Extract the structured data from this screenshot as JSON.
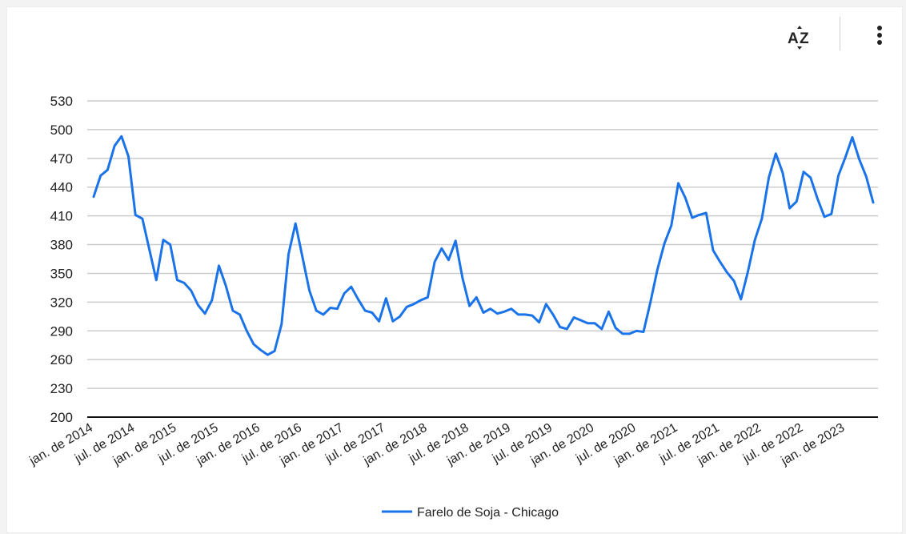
{
  "toolbar": {
    "sort_icon": "az-sort-icon",
    "menu_icon": "more-vertical-icon"
  },
  "chart_data": {
    "type": "line",
    "title": "",
    "xlabel": "",
    "ylabel": "",
    "ylim": [
      200,
      530
    ],
    "y_ticks": [
      200,
      230,
      260,
      290,
      320,
      350,
      380,
      410,
      440,
      470,
      500,
      530
    ],
    "x_tick_labels": [
      "jan. de 2014",
      "jul. de 2014",
      "jan. de 2015",
      "jul. de 2015",
      "jan. de 2016",
      "jul. de 2016",
      "jan. de 2017",
      "jul. de 2017",
      "jan. de 2018",
      "jul. de 2018",
      "jan. de 2019",
      "jul. de 2019",
      "jan. de 2020",
      "jul. de 2020",
      "jan. de 2021",
      "jul. de 2021",
      "jan. de 2022",
      "jul. de 2022",
      "jan. de 2023"
    ],
    "x_start": "2014-01",
    "x_frequency": "monthly",
    "grid": true,
    "legend_position": "bottom",
    "series": [
      {
        "name": "Farelo de Soja - Chicago",
        "color": "#1a73e8",
        "values": [
          430,
          452,
          458,
          483,
          493,
          472,
          411,
          407,
          375,
          343,
          385,
          380,
          343,
          340,
          332,
          317,
          308,
          322,
          358,
          337,
          311,
          307,
          290,
          276,
          270,
          265,
          269,
          297,
          370,
          402,
          367,
          332,
          311,
          307,
          314,
          313,
          329,
          336,
          323,
          311,
          309,
          300,
          324,
          300,
          305,
          315,
          318,
          322,
          325,
          362,
          376,
          364,
          384,
          345,
          316,
          325,
          309,
          313,
          308,
          310,
          313,
          307,
          307,
          306,
          299,
          318,
          307,
          294,
          292,
          304,
          301,
          298,
          298,
          292,
          310,
          293,
          287,
          287,
          290,
          289,
          320,
          354,
          381,
          400,
          444,
          429,
          408,
          411,
          413,
          374,
          362,
          351,
          342,
          323,
          352,
          385,
          407,
          450,
          475,
          455,
          418,
          425,
          456,
          450,
          428,
          409,
          412,
          452,
          471,
          492,
          469,
          451,
          424
        ]
      }
    ]
  }
}
